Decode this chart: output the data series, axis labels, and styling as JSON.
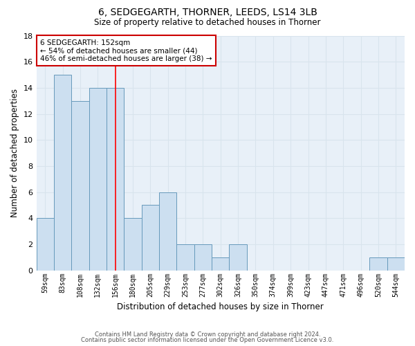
{
  "title1": "6, SEDGEGARTH, THORNER, LEEDS, LS14 3LB",
  "title2": "Size of property relative to detached houses in Thorner",
  "xlabel": "Distribution of detached houses by size in Thorner",
  "ylabel": "Number of detached properties",
  "categories": [
    "59sqm",
    "83sqm",
    "108sqm",
    "132sqm",
    "156sqm",
    "180sqm",
    "205sqm",
    "229sqm",
    "253sqm",
    "277sqm",
    "302sqm",
    "326sqm",
    "350sqm",
    "374sqm",
    "399sqm",
    "423sqm",
    "447sqm",
    "471sqm",
    "496sqm",
    "520sqm",
    "544sqm"
  ],
  "values": [
    4,
    15,
    13,
    14,
    14,
    4,
    5,
    6,
    2,
    2,
    1,
    2,
    0,
    0,
    0,
    0,
    0,
    0,
    0,
    1,
    1
  ],
  "bar_color": "#ccdff0",
  "bar_edge_color": "#6699bb",
  "grid_color": "#d8e4ed",
  "bg_color": "#e8f0f8",
  "red_line_x": 4.0,
  "annotation_text": "6 SEDGEGARTH: 152sqm\n← 54% of detached houses are smaller (44)\n46% of semi-detached houses are larger (38) →",
  "annotation_box_color": "#ffffff",
  "annotation_box_edge": "#cc0000",
  "ylim": [
    0,
    18
  ],
  "yticks": [
    0,
    2,
    4,
    6,
    8,
    10,
    12,
    14,
    16,
    18
  ],
  "footer1": "Contains HM Land Registry data © Crown copyright and database right 2024.",
  "footer2": "Contains public sector information licensed under the Open Government Licence v3.0."
}
